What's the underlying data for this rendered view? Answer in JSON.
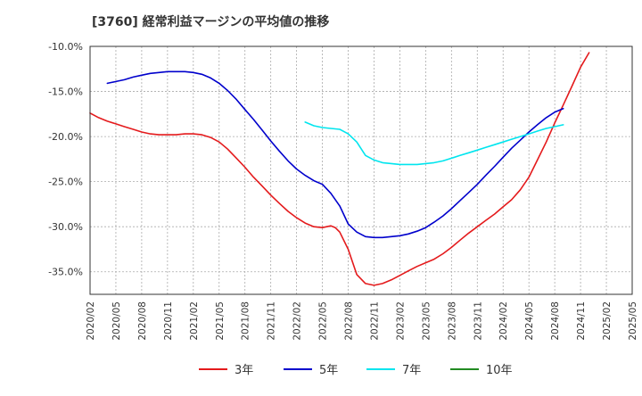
{
  "chart_data": {
    "type": "line",
    "title": "[3760]  経常利益マージンの平均値の推移",
    "xlabel": "",
    "ylabel": "",
    "x_ticks": [
      "2020/02",
      "2020/05",
      "2020/08",
      "2020/11",
      "2021/02",
      "2021/05",
      "2021/08",
      "2021/11",
      "2022/02",
      "2022/05",
      "2022/08",
      "2022/11",
      "2023/02",
      "2023/05",
      "2023/08",
      "2023/11",
      "2024/02",
      "2024/05",
      "2024/08",
      "2024/11",
      "2025/02",
      "2025/05"
    ],
    "y_ticks": [
      "-10.0%",
      "-15.0%",
      "-20.0%",
      "-25.0%",
      "-30.0%",
      "-35.0%"
    ],
    "y_tick_values": [
      -10,
      -15,
      -20,
      -25,
      -30,
      -35
    ],
    "ylim": [
      -37.5,
      -10
    ],
    "xlim": [
      0,
      21
    ],
    "grid": true,
    "legend_position": "bottom",
    "series": [
      {
        "name": "3年",
        "color": "#e41a1c",
        "points": [
          [
            0,
            -17.4
          ],
          [
            0.33,
            -17.9
          ],
          [
            0.67,
            -18.3
          ],
          [
            1,
            -18.6
          ],
          [
            1.33,
            -18.9
          ],
          [
            1.67,
            -19.2
          ],
          [
            2,
            -19.5
          ],
          [
            2.33,
            -19.7
          ],
          [
            2.67,
            -19.8
          ],
          [
            3,
            -19.8
          ],
          [
            3.33,
            -19.8
          ],
          [
            3.67,
            -19.7
          ],
          [
            4,
            -19.7
          ],
          [
            4.33,
            -19.8
          ],
          [
            4.67,
            -20.1
          ],
          [
            5,
            -20.6
          ],
          [
            5.33,
            -21.4
          ],
          [
            5.67,
            -22.4
          ],
          [
            6,
            -23.4
          ],
          [
            6.33,
            -24.5
          ],
          [
            6.67,
            -25.5
          ],
          [
            7,
            -26.5
          ],
          [
            7.33,
            -27.4
          ],
          [
            7.67,
            -28.3
          ],
          [
            8,
            -29.0
          ],
          [
            8.33,
            -29.6
          ],
          [
            8.67,
            -30.0
          ],
          [
            9,
            -30.1
          ],
          [
            9.33,
            -29.9
          ],
          [
            9.5,
            -30.1
          ],
          [
            9.67,
            -30.6
          ],
          [
            10,
            -32.5
          ],
          [
            10.33,
            -35.3
          ],
          [
            10.67,
            -36.3
          ],
          [
            11,
            -36.5
          ],
          [
            11.33,
            -36.3
          ],
          [
            11.67,
            -35.9
          ],
          [
            12,
            -35.4
          ],
          [
            12.33,
            -34.9
          ],
          [
            12.67,
            -34.4
          ],
          [
            13,
            -34.0
          ],
          [
            13.33,
            -33.6
          ],
          [
            13.67,
            -33.0
          ],
          [
            14,
            -32.3
          ],
          [
            14.33,
            -31.5
          ],
          [
            14.67,
            -30.7
          ],
          [
            15,
            -30.0
          ],
          [
            15.33,
            -29.3
          ],
          [
            15.67,
            -28.6
          ],
          [
            16,
            -27.8
          ],
          [
            16.33,
            -27.0
          ],
          [
            16.67,
            -25.9
          ],
          [
            17,
            -24.5
          ],
          [
            17.33,
            -22.6
          ],
          [
            17.67,
            -20.6
          ],
          [
            18,
            -18.5
          ],
          [
            18.33,
            -16.5
          ],
          [
            18.67,
            -14.4
          ],
          [
            19,
            -12.3
          ],
          [
            19.33,
            -10.7
          ]
        ]
      },
      {
        "name": "5年",
        "color": "#0000cc",
        "points": [
          [
            0.67,
            -14.1
          ],
          [
            1,
            -13.9
          ],
          [
            1.33,
            -13.7
          ],
          [
            1.67,
            -13.4
          ],
          [
            2,
            -13.2
          ],
          [
            2.33,
            -13.0
          ],
          [
            2.67,
            -12.9
          ],
          [
            3,
            -12.8
          ],
          [
            3.33,
            -12.8
          ],
          [
            3.67,
            -12.8
          ],
          [
            4,
            -12.9
          ],
          [
            4.33,
            -13.1
          ],
          [
            4.67,
            -13.5
          ],
          [
            5,
            -14.1
          ],
          [
            5.33,
            -14.9
          ],
          [
            5.67,
            -15.9
          ],
          [
            6,
            -17.0
          ],
          [
            6.33,
            -18.1
          ],
          [
            6.67,
            -19.3
          ],
          [
            7,
            -20.5
          ],
          [
            7.33,
            -21.6
          ],
          [
            7.67,
            -22.7
          ],
          [
            8,
            -23.6
          ],
          [
            8.33,
            -24.3
          ],
          [
            8.67,
            -24.9
          ],
          [
            9,
            -25.3
          ],
          [
            9.33,
            -26.3
          ],
          [
            9.67,
            -27.7
          ],
          [
            10,
            -29.7
          ],
          [
            10.33,
            -30.6
          ],
          [
            10.67,
            -31.1
          ],
          [
            11,
            -31.2
          ],
          [
            11.33,
            -31.2
          ],
          [
            11.67,
            -31.1
          ],
          [
            12,
            -31.0
          ],
          [
            12.33,
            -30.8
          ],
          [
            12.67,
            -30.5
          ],
          [
            13,
            -30.1
          ],
          [
            13.33,
            -29.5
          ],
          [
            13.67,
            -28.8
          ],
          [
            14,
            -28.0
          ],
          [
            14.33,
            -27.1
          ],
          [
            14.67,
            -26.2
          ],
          [
            15,
            -25.3
          ],
          [
            15.33,
            -24.3
          ],
          [
            15.67,
            -23.3
          ],
          [
            16,
            -22.3
          ],
          [
            16.33,
            -21.3
          ],
          [
            16.67,
            -20.4
          ],
          [
            17,
            -19.5
          ],
          [
            17.33,
            -18.7
          ],
          [
            17.67,
            -17.9
          ],
          [
            18,
            -17.3
          ],
          [
            18.33,
            -16.9
          ]
        ]
      },
      {
        "name": "7年",
        "color": "#00e5ee",
        "points": [
          [
            8.33,
            -18.4
          ],
          [
            8.67,
            -18.8
          ],
          [
            9,
            -19.0
          ],
          [
            9.33,
            -19.1
          ],
          [
            9.67,
            -19.2
          ],
          [
            10,
            -19.7
          ],
          [
            10.33,
            -20.6
          ],
          [
            10.67,
            -22.1
          ],
          [
            11,
            -22.6
          ],
          [
            11.33,
            -22.9
          ],
          [
            11.67,
            -23.0
          ],
          [
            12,
            -23.1
          ],
          [
            12.33,
            -23.1
          ],
          [
            12.67,
            -23.1
          ],
          [
            13,
            -23.0
          ],
          [
            13.33,
            -22.9
          ],
          [
            13.67,
            -22.7
          ],
          [
            14,
            -22.4
          ],
          [
            14.33,
            -22.1
          ],
          [
            14.67,
            -21.8
          ],
          [
            15,
            -21.5
          ],
          [
            15.33,
            -21.2
          ],
          [
            15.67,
            -20.9
          ],
          [
            16,
            -20.6
          ],
          [
            16.33,
            -20.3
          ],
          [
            16.67,
            -20.0
          ],
          [
            17,
            -19.7
          ],
          [
            17.33,
            -19.4
          ],
          [
            17.67,
            -19.1
          ],
          [
            18,
            -18.9
          ],
          [
            18.33,
            -18.7
          ]
        ]
      },
      {
        "name": "10年",
        "color": "#228b22",
        "points": []
      }
    ]
  }
}
